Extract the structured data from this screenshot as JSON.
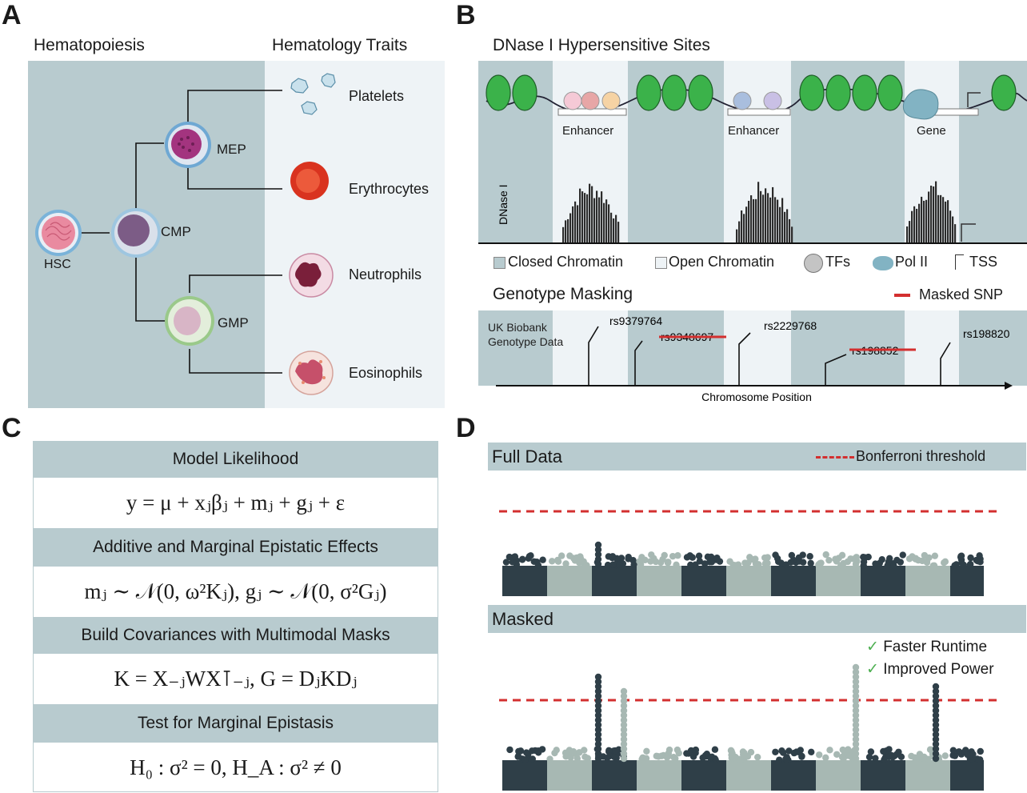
{
  "panels": {
    "a": "A",
    "b": "B",
    "c": "C",
    "d": "D"
  },
  "panel_a": {
    "title_left": "Hematopoiesis",
    "title_right": "Hematology Traits",
    "cells": [
      "HSC",
      "CMP",
      "MEP",
      "GMP"
    ],
    "traits": [
      "Platelets",
      "Erythrocytes",
      "Neutrophils",
      "Eosinophils"
    ],
    "colors": {
      "bg_left": "#b8cbcf",
      "bg_right": "#eef3f6"
    }
  },
  "panel_b": {
    "title": "DNase I Hypersensitive Sites",
    "region_labels": [
      "Enhancer",
      "Enhancer",
      "Gene"
    ],
    "track_label": "DNase I",
    "legend": [
      "Closed Chromatin",
      "Open Chromatin",
      "TFs",
      "Pol II",
      "TSS"
    ],
    "masking_title": "Genotype Masking",
    "masked_legend": "Masked SNP",
    "data_label_line1": "UK Biobank",
    "data_label_line2": "Genotype Data",
    "snps": [
      {
        "id": "rs9379764",
        "masked": false
      },
      {
        "id": "rs9348697",
        "masked": true
      },
      {
        "id": "rs2229768",
        "masked": false
      },
      {
        "id": "rs198852",
        "masked": true
      },
      {
        "id": "rs198820",
        "masked": false
      }
    ],
    "axis_label": "Chromosome Position",
    "colors": {
      "closed": "#b8cbcf",
      "open": "#eef3f6",
      "mask": "#d32f2f"
    }
  },
  "panel_c": {
    "sections": [
      {
        "heading": "Model Likelihood",
        "equation": "y = μ + xⱼβⱼ + mⱼ + gⱼ + ε"
      },
      {
        "heading": "Additive and Marginal Epistatic Effects",
        "equation": "mⱼ ∼ 𝒩(0, ω²Kⱼ),    gⱼ ∼ 𝒩(0, σ²Gⱼ)"
      },
      {
        "heading": "Build Covariances with Multimodal Masks",
        "equation": "K = X₋ⱼWX⊺₋ⱼ,    G = DⱼKDⱼ"
      },
      {
        "heading": "Test for Marginal Epistasis",
        "equation": "H₀ :  σ² = 0,    H_A :  σ² ≠ 0"
      }
    ]
  },
  "panel_d": {
    "top_label": "Full Data",
    "threshold_label": "Bonferroni threshold",
    "bottom_label": "Masked",
    "benefits": [
      "Faster Runtime",
      "Improved Power"
    ],
    "colors": {
      "dark": "#2f3f48",
      "light": "#a7b8b3",
      "threshold": "#d32f2f",
      "check": "#4caf50"
    }
  }
}
